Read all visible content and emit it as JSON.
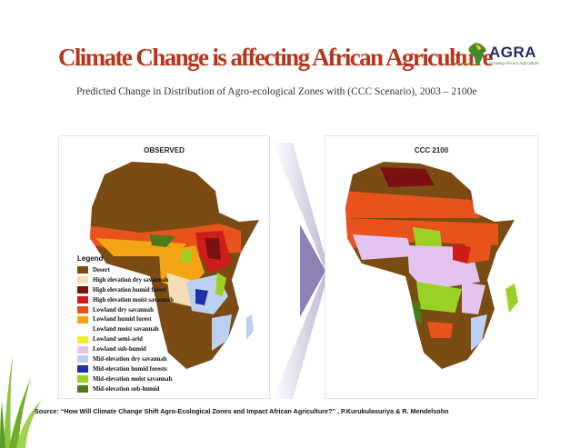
{
  "header": {
    "title": "Climate Change is affecting African Agriculture",
    "subtitle": "Predicted Change in Distribution of Agro-ecological Zones with (CCC Scenario), 2003 – 2100e"
  },
  "logo": {
    "name": "AGRA",
    "tagline": "Growing Africa's Agriculture"
  },
  "panels": {
    "observed": {
      "title": "OBSERVED"
    },
    "projected": {
      "title": "CCC 2100"
    }
  },
  "legend": {
    "title": "Legend",
    "items": [
      {
        "label": "Desert",
        "color": "#7a4b12"
      },
      {
        "label": "High elevation dry savannah",
        "color": "#f5deb3"
      },
      {
        "label": "High elevation humid forest",
        "color": "#7d1010"
      },
      {
        "label": "High elevation moist savannah",
        "color": "#d01b1b"
      },
      {
        "label": "Lowland dry savannah",
        "color": "#e8531c"
      },
      {
        "label": "Lowland humid forest",
        "color": "#f4a312"
      },
      {
        "label": "Lowland moist savannah",
        "color": "#ffffff"
      },
      {
        "label": "Lowland semi-arid",
        "color": "#f4ec2a"
      },
      {
        "label": "Lowland sub-humid",
        "color": "#e3c4f0"
      },
      {
        "label": "Mid-elevation dry savannah",
        "color": "#bcd0f0"
      },
      {
        "label": "Mid-elevation humid forests",
        "color": "#1f2fa8"
      },
      {
        "label": "Mid-elevation moist savannah",
        "color": "#9bd124"
      },
      {
        "label": "Mid-elevation sub-humid",
        "color": "#4a7a1a"
      }
    ]
  },
  "source": "Source: “How Will Climate Change Shift Agro-Ecological Zones and Impact African Agriculture?” , P.Kurukulasuriya & R. Mendelsohn",
  "colors": {
    "title": "#b7361b",
    "accent": "#8aa535"
  }
}
